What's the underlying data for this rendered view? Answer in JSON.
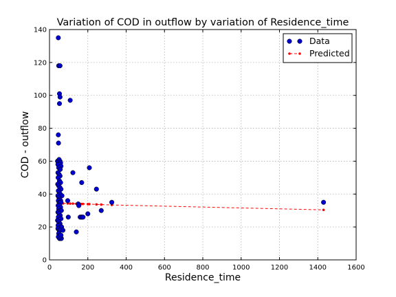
{
  "chart_data": {
    "type": "scatter",
    "title": "Variation of COD in outflow by variation of Residence_time",
    "xlabel": "Residence_time",
    "ylabel": "COD - outflow",
    "xlim": [
      0,
      1600
    ],
    "ylim": [
      0,
      140
    ],
    "xticks": [
      0,
      200,
      400,
      600,
      800,
      1000,
      1200,
      1400,
      1600
    ],
    "yticks": [
      0,
      20,
      40,
      60,
      80,
      100,
      120,
      140
    ],
    "grid": true,
    "legend_position": "top-right",
    "series": [
      {
        "name": "Data",
        "style": "markers",
        "color": "#0000cc",
        "points": [
          [
            46,
            135
          ],
          [
            48,
            118
          ],
          [
            55,
            118
          ],
          [
            52,
            101
          ],
          [
            55,
            99
          ],
          [
            52,
            95
          ],
          [
            108,
            97
          ],
          [
            46,
            76
          ],
          [
            47,
            71
          ],
          [
            42,
            60
          ],
          [
            46,
            60
          ],
          [
            50,
            61
          ],
          [
            55,
            60
          ],
          [
            58,
            59
          ],
          [
            44,
            58
          ],
          [
            52,
            58
          ],
          [
            60,
            57
          ],
          [
            48,
            56
          ],
          [
            56,
            55
          ],
          [
            44,
            53
          ],
          [
            50,
            52
          ],
          [
            55,
            51
          ],
          [
            45,
            50
          ],
          [
            52,
            48
          ],
          [
            58,
            47
          ],
          [
            43,
            46
          ],
          [
            48,
            45
          ],
          [
            54,
            44
          ],
          [
            60,
            43
          ],
          [
            46,
            42
          ],
          [
            51,
            41
          ],
          [
            56,
            40
          ],
          [
            65,
            39
          ],
          [
            44,
            39
          ],
          [
            49,
            38
          ],
          [
            53,
            37
          ],
          [
            58,
            36
          ],
          [
            46,
            36
          ],
          [
            50,
            35
          ],
          [
            55,
            35
          ],
          [
            60,
            35
          ],
          [
            45,
            33
          ],
          [
            52,
            33
          ],
          [
            58,
            32
          ],
          [
            48,
            31
          ],
          [
            55,
            30
          ],
          [
            62,
            30
          ],
          [
            44,
            29
          ],
          [
            50,
            28
          ],
          [
            56,
            27
          ],
          [
            46,
            26
          ],
          [
            53,
            25
          ],
          [
            60,
            25
          ],
          [
            42,
            24
          ],
          [
            48,
            23
          ],
          [
            55,
            22
          ],
          [
            45,
            21
          ],
          [
            52,
            21
          ],
          [
            58,
            20
          ],
          [
            63,
            20
          ],
          [
            44,
            19
          ],
          [
            50,
            18
          ],
          [
            56,
            18
          ],
          [
            70,
            18
          ],
          [
            48,
            16
          ],
          [
            54,
            15
          ],
          [
            46,
            14
          ],
          [
            52,
            13
          ],
          [
            58,
            13
          ],
          [
            62,
            13
          ],
          [
            55,
            14
          ],
          [
            60,
            15
          ],
          [
            208,
            56
          ],
          [
            122,
            53
          ],
          [
            168,
            47
          ],
          [
            245,
            43
          ],
          [
            95,
            36
          ],
          [
            150,
            34
          ],
          [
            153,
            33
          ],
          [
            98,
            26
          ],
          [
            160,
            26
          ],
          [
            166,
            26
          ],
          [
            170,
            26
          ],
          [
            175,
            26
          ],
          [
            200,
            28
          ],
          [
            270,
            30
          ],
          [
            140,
            17
          ],
          [
            325,
            35
          ],
          [
            1430,
            35
          ]
        ]
      },
      {
        "name": "Predicted",
        "style": "line-markers",
        "color": "#ff0000",
        "points": [
          [
            46,
            34.4
          ],
          [
            52,
            34.4
          ],
          [
            58,
            34.4
          ],
          [
            65,
            34.4
          ],
          [
            70,
            34.3
          ],
          [
            95,
            34.3
          ],
          [
            108,
            34.2
          ],
          [
            122,
            34.2
          ],
          [
            140,
            34.1
          ],
          [
            150,
            34.1
          ],
          [
            166,
            34.0
          ],
          [
            175,
            34.0
          ],
          [
            200,
            33.9
          ],
          [
            208,
            33.9
          ],
          [
            245,
            33.7
          ],
          [
            270,
            33.6
          ],
          [
            325,
            33.4
          ],
          [
            1430,
            30.4
          ]
        ]
      }
    ]
  }
}
